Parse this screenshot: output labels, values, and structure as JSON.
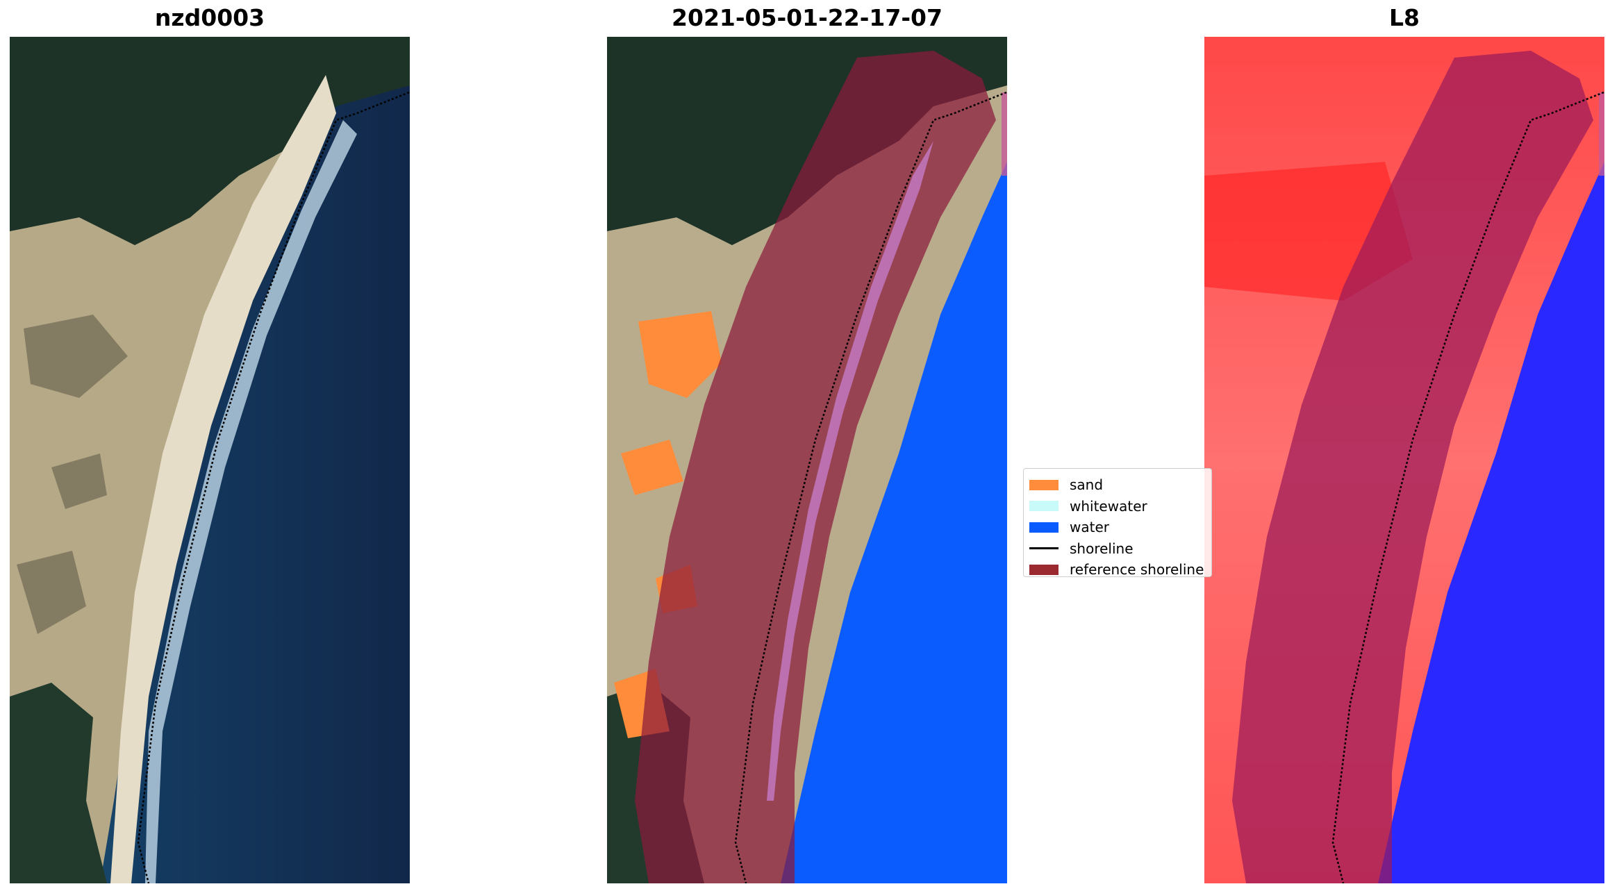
{
  "panels": [
    {
      "id": "rgb",
      "title": "nzd0003"
    },
    {
      "id": "classified",
      "title": "2021-05-01-22-17-07"
    },
    {
      "id": "index",
      "title": "L8"
    }
  ],
  "legend": {
    "items": [
      {
        "label": "sand",
        "color": "#ff8c3a",
        "kind": "patch"
      },
      {
        "label": "whitewater",
        "color": "#c8fafa",
        "kind": "patch"
      },
      {
        "label": "water",
        "color": "#0a5cff",
        "kind": "patch"
      },
      {
        "label": "shoreline",
        "color": "#000000",
        "kind": "line"
      },
      {
        "label": "reference shoreline",
        "color": "#9b2a30",
        "kind": "patch"
      }
    ]
  },
  "colors": {
    "forest": "#1d3227",
    "dunes": "#b8aa8a",
    "beach": "#e5ddc9",
    "deep_water": "#12294a",
    "shallow_water": "#1f5a7a",
    "whitewater_surf": "#cfe4f0",
    "sand_class": "#ff8c3a",
    "water_class": "#0a5cff",
    "reference_buffer": "#8b1a3c",
    "index_land": "#ff3030",
    "index_water": "#2828ff"
  },
  "icons": {
    "shoreline_marker": "dotted-line"
  }
}
